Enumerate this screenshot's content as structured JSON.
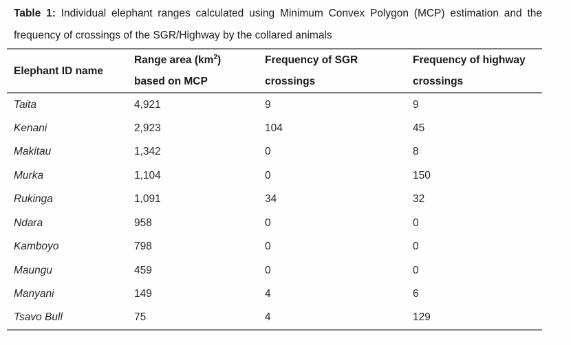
{
  "caption": {
    "label": "Table 1:",
    "line1_rest": "Individual elephant ranges calculated using Minimum Convex Polygon (MCP) estimation and the",
    "line2": "frequency of crossings of the SGR/Highway by the collared animals"
  },
  "table": {
    "header": {
      "col1": "Elephant ID name",
      "col2_line1_base": "Range area (km",
      "col2_line1_sup": "2",
      "col2_line1_close": ")",
      "col2_line2": "based on MCP",
      "col3_line1": "Frequency of SGR",
      "col3_line2": "crossings",
      "col4_line1": "Frequency of highway",
      "col4_line2": "crossings"
    },
    "rows": [
      {
        "name": "Taita",
        "range": "4,921",
        "sgr": "9",
        "highway": "9"
      },
      {
        "name": "Kenani",
        "range": "2,923",
        "sgr": "104",
        "highway": "45"
      },
      {
        "name": "Makitau",
        "range": "1,342",
        "sgr": "0",
        "highway": "8"
      },
      {
        "name": "Murka",
        "range": "1,104",
        "sgr": "0",
        "highway": "150"
      },
      {
        "name": "Rukinga",
        "range": "1,091",
        "sgr": "34",
        "highway": "32"
      },
      {
        "name": "Ndara",
        "range": "958",
        "sgr": "0",
        "highway": "0"
      },
      {
        "name": "Kamboyo",
        "range": "798",
        "sgr": "0",
        "highway": "0"
      },
      {
        "name": "Maungu",
        "range": "459",
        "sgr": "0",
        "highway": "0"
      },
      {
        "name": "Manyani",
        "range": "149",
        "sgr": "4",
        "highway": "6"
      },
      {
        "name": "Tsavo Bull",
        "range": "75",
        "sgr": "4",
        "highway": "129"
      }
    ]
  },
  "colors": {
    "rule_gray": "#7f7f7f",
    "text_dark": "#1f1f1f",
    "background": "#fefefe"
  }
}
